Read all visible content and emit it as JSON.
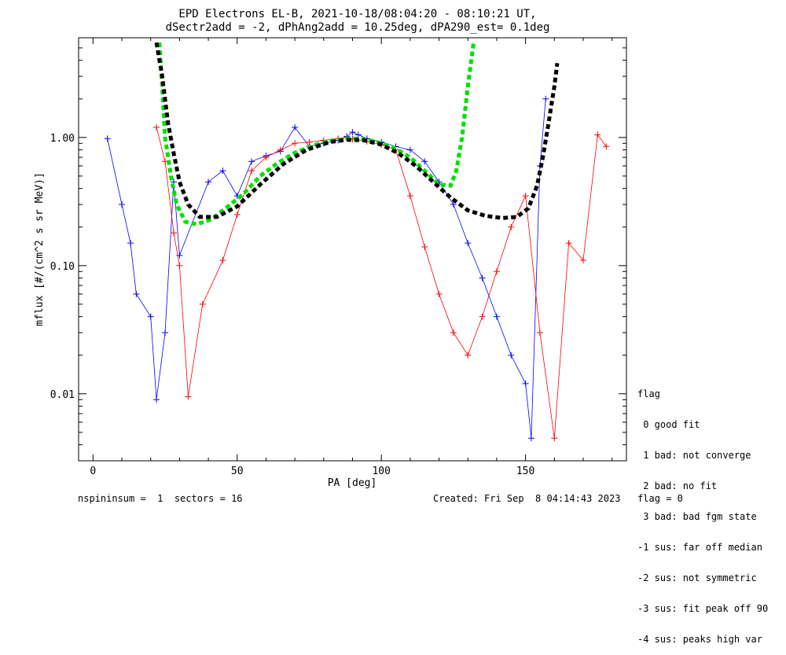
{
  "chart_data": {
    "type": "scatter",
    "title": "EPD Electrons EL-B, 2021-10-18/08:04:20 - 08:10:21 UT,",
    "subtitle": "dSectr2add = -2, dPhAng2add = 10.25deg, dPA290_est=   0.1deg",
    "xlabel": "PA [deg]",
    "ylabel": "mflux [#/(cm^2 s sr MeV)]",
    "xlim": [
      -5,
      185
    ],
    "ylim": [
      0.003,
      6
    ],
    "yscale": "log",
    "x_ticks": [
      0,
      50,
      100,
      150
    ],
    "x_tick_labels": [
      "0",
      "50",
      "100",
      "150"
    ],
    "y_ticks": [
      0.01,
      0.1,
      1.0
    ],
    "y_tick_labels": [
      "0.01",
      "0.10",
      "1.00"
    ],
    "series": [
      {
        "color": "#0000ff",
        "marker": "+",
        "values": [
          [
            5,
            0.98
          ],
          [
            10,
            0.3
          ],
          [
            13,
            0.15
          ],
          [
            15,
            0.06
          ],
          [
            20,
            0.04
          ],
          [
            22,
            0.009
          ],
          [
            25,
            0.03
          ],
          [
            28,
            0.45
          ],
          [
            30,
            0.12
          ],
          [
            40,
            0.45
          ],
          [
            45,
            0.55
          ],
          [
            50,
            0.35
          ],
          [
            55,
            0.65
          ],
          [
            60,
            0.72
          ],
          [
            65,
            0.78
          ],
          [
            70,
            1.2
          ],
          [
            75,
            0.85
          ],
          [
            80,
            0.9
          ],
          [
            85,
            0.95
          ],
          [
            88,
            1.02
          ],
          [
            90,
            1.1
          ],
          [
            92,
            1.05
          ],
          [
            95,
            0.98
          ],
          [
            100,
            0.92
          ],
          [
            105,
            0.85
          ],
          [
            110,
            0.8
          ],
          [
            115,
            0.65
          ],
          [
            120,
            0.45
          ],
          [
            125,
            0.3
          ],
          [
            130,
            0.15
          ],
          [
            135,
            0.08
          ],
          [
            140,
            0.04
          ],
          [
            145,
            0.02
          ],
          [
            150,
            0.012
          ],
          [
            152,
            0.0045
          ],
          [
            155,
            0.6
          ],
          [
            157,
            2.0
          ]
        ]
      },
      {
        "color": "#ff0000",
        "marker": "+",
        "values": [
          [
            22,
            1.2
          ],
          [
            25,
            0.65
          ],
          [
            28,
            0.18
          ],
          [
            30,
            0.1
          ],
          [
            33,
            0.0095
          ],
          [
            38,
            0.05
          ],
          [
            45,
            0.11
          ],
          [
            50,
            0.25
          ],
          [
            55,
            0.55
          ],
          [
            60,
            0.7
          ],
          [
            65,
            0.8
          ],
          [
            70,
            0.9
          ],
          [
            75,
            0.92
          ],
          [
            80,
            0.95
          ],
          [
            85,
            0.98
          ],
          [
            88,
            1.0
          ],
          [
            90,
            0.97
          ],
          [
            95,
            0.93
          ],
          [
            100,
            0.88
          ],
          [
            105,
            0.8
          ],
          [
            110,
            0.35
          ],
          [
            115,
            0.14
          ],
          [
            120,
            0.06
          ],
          [
            125,
            0.03
          ],
          [
            130,
            0.02
          ],
          [
            135,
            0.04
          ],
          [
            140,
            0.09
          ],
          [
            145,
            0.2
          ],
          [
            150,
            0.35
          ],
          [
            155,
            0.03
          ],
          [
            160,
            0.0045
          ],
          [
            165,
            0.15
          ],
          [
            170,
            0.11
          ],
          [
            175,
            1.05
          ],
          [
            178,
            0.85
          ]
        ]
      },
      {
        "color": "#00e000",
        "style": "dashed",
        "name": "",
        "values": [
          [
            23,
            5.5
          ],
          [
            24,
            2.5
          ],
          [
            25,
            1.0
          ],
          [
            27,
            0.5
          ],
          [
            29,
            0.3
          ],
          [
            32,
            0.22
          ],
          [
            36,
            0.21
          ],
          [
            41,
            0.23
          ],
          [
            46,
            0.28
          ],
          [
            52,
            0.36
          ],
          [
            58,
            0.5
          ],
          [
            64,
            0.63
          ],
          [
            70,
            0.76
          ],
          [
            76,
            0.86
          ],
          [
            82,
            0.94
          ],
          [
            88,
            0.98
          ],
          [
            92,
            0.98
          ],
          [
            98,
            0.93
          ],
          [
            104,
            0.84
          ],
          [
            110,
            0.7
          ],
          [
            115,
            0.55
          ],
          [
            120,
            0.43
          ],
          [
            124,
            0.42
          ],
          [
            126,
            0.55
          ],
          [
            128,
            1.0
          ],
          [
            130,
            2.5
          ],
          [
            132,
            5.5
          ]
        ]
      },
      {
        "color": "#000000",
        "style": "dashed",
        "name": "",
        "values": [
          [
            22,
            5.5
          ],
          [
            24,
            3.0
          ],
          [
            26,
            1.3
          ],
          [
            28,
            0.75
          ],
          [
            30,
            0.45
          ],
          [
            33,
            0.3
          ],
          [
            37,
            0.24
          ],
          [
            43,
            0.24
          ],
          [
            50,
            0.29
          ],
          [
            58,
            0.43
          ],
          [
            66,
            0.62
          ],
          [
            74,
            0.8
          ],
          [
            82,
            0.92
          ],
          [
            88,
            0.96
          ],
          [
            94,
            0.95
          ],
          [
            100,
            0.88
          ],
          [
            106,
            0.75
          ],
          [
            112,
            0.6
          ],
          [
            118,
            0.45
          ],
          [
            124,
            0.34
          ],
          [
            130,
            0.27
          ],
          [
            136,
            0.245
          ],
          [
            142,
            0.235
          ],
          [
            147,
            0.24
          ],
          [
            151,
            0.28
          ],
          [
            154,
            0.42
          ],
          [
            156,
            0.7
          ],
          [
            158,
            1.3
          ],
          [
            160,
            2.5
          ],
          [
            161,
            3.8
          ]
        ]
      }
    ]
  },
  "legend": {
    "title": "flag",
    "items": [
      " 0 good fit",
      " 1 bad: not converge",
      " 2 bad: no fit",
      " 3 bad: bad fgm state",
      "-1 sus: far off median",
      "-2 sus: not symmetric",
      "-3 sus: fit peak off 90",
      "-4 sus: peaks high var"
    ]
  },
  "footer": {
    "left": "nspininsum =  1  sectors = 16",
    "right": "Created: Fri Sep  8 04:14:43 2023   flag = 0"
  }
}
